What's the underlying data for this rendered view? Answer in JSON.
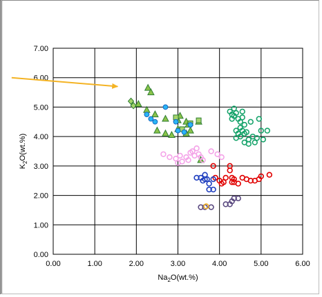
{
  "chart_data": {
    "type": "scatter",
    "title": "",
    "xlabel": {
      "main": "Na",
      "sub": "2",
      "rest": "O(wt.%)"
    },
    "ylabel": {
      "main": "K",
      "sub": "2",
      "rest": "O(wt.%)"
    },
    "xlim": [
      0,
      6
    ],
    "ylim": [
      0,
      7
    ],
    "x_ticks": [
      "0.00",
      "1.00",
      "2.00",
      "3.00",
      "4.00",
      "5.00",
      "6.00"
    ],
    "y_ticks": [
      "0.00",
      "1.00",
      "2.00",
      "3.00",
      "4.00",
      "5.00",
      "6.00",
      "7.00"
    ],
    "grid": true,
    "annotation_arrow": {
      "color": "#f4b323",
      "from": [
        -1.0,
        6.0
      ],
      "to": [
        1.55,
        5.7
      ]
    },
    "series": [
      {
        "marker": "diamond",
        "color": "#2e7d32",
        "fill": "#a5d36c",
        "points": [
          [
            1.87,
            5.2
          ],
          [
            1.93,
            5.05
          ]
        ]
      },
      {
        "marker": "triangle",
        "color": "#2e7d32",
        "fill": "#8bc34a",
        "points": [
          [
            2.28,
            5.65
          ],
          [
            2.35,
            5.5
          ],
          [
            2.05,
            5.1
          ],
          [
            2.25,
            4.9
          ],
          [
            2.45,
            4.75
          ],
          [
            2.7,
            4.6
          ],
          [
            3.0,
            4.55
          ],
          [
            3.05,
            4.7
          ],
          [
            3.2,
            4.5
          ],
          [
            3.25,
            4.4
          ],
          [
            3.3,
            4.2
          ],
          [
            3.5,
            4.5
          ],
          [
            2.5,
            4.2
          ],
          [
            2.7,
            4.1
          ],
          [
            2.85,
            4.05
          ],
          [
            3.0,
            4.25
          ],
          [
            3.2,
            4.1
          ],
          [
            3.55,
            3.2
          ]
        ]
      },
      {
        "marker": "square",
        "color": "#2e7d32",
        "fill": "#a5d36c",
        "points": [
          [
            2.95,
            4.65
          ],
          [
            3.1,
            4.25
          ],
          [
            3.3,
            4.45
          ],
          [
            3.5,
            4.55
          ]
        ]
      },
      {
        "marker": "circle",
        "color": "#1565c0",
        "fill": "#29b6f6",
        "points": [
          [
            2.25,
            4.75
          ],
          [
            2.35,
            4.6
          ],
          [
            2.45,
            4.5
          ],
          [
            2.7,
            5.0
          ],
          [
            2.95,
            4.5
          ],
          [
            3.0,
            4.2
          ],
          [
            3.15,
            4.15
          ],
          [
            3.3,
            4.4
          ]
        ]
      },
      {
        "marker": "circle",
        "color": "#f4a3e8",
        "fill": "none",
        "points": [
          [
            2.65,
            3.4
          ],
          [
            2.8,
            3.3
          ],
          [
            2.95,
            3.25
          ],
          [
            3.0,
            3.1
          ],
          [
            3.05,
            3.35
          ],
          [
            3.1,
            3.15
          ],
          [
            3.2,
            3.3
          ],
          [
            3.25,
            3.2
          ],
          [
            3.3,
            3.45
          ],
          [
            3.35,
            3.5
          ],
          [
            3.4,
            3.35
          ],
          [
            3.45,
            3.6
          ],
          [
            3.5,
            3.4
          ],
          [
            3.55,
            3.3
          ],
          [
            3.6,
            3.2
          ],
          [
            3.8,
            3.5
          ],
          [
            3.95,
            3.4
          ],
          [
            4.05,
            3.3
          ]
        ]
      },
      {
        "marker": "circle",
        "color": "#16a36a",
        "fill": "none",
        "points": [
          [
            4.25,
            4.85
          ],
          [
            4.3,
            4.75
          ],
          [
            4.3,
            4.6
          ],
          [
            4.35,
            4.95
          ],
          [
            4.35,
            4.7
          ],
          [
            4.4,
            4.8
          ],
          [
            4.45,
            4.6
          ],
          [
            4.5,
            4.5
          ],
          [
            4.55,
            4.85
          ],
          [
            4.55,
            4.65
          ],
          [
            4.6,
            4.4
          ],
          [
            4.4,
            4.2
          ],
          [
            4.45,
            4.1
          ],
          [
            4.5,
            4.3
          ],
          [
            4.5,
            4.0
          ],
          [
            4.55,
            4.2
          ],
          [
            4.6,
            4.1
          ],
          [
            4.6,
            3.8
          ],
          [
            4.65,
            4.15
          ],
          [
            4.7,
            3.9
          ],
          [
            4.7,
            3.75
          ],
          [
            4.75,
            4.5
          ],
          [
            4.8,
            4.0
          ],
          [
            4.85,
            3.8
          ],
          [
            4.9,
            3.95
          ],
          [
            4.95,
            4.6
          ],
          [
            5.0,
            4.2
          ],
          [
            5.05,
            3.9
          ],
          [
            5.15,
            4.2
          ],
          [
            4.4,
            3.95
          ]
        ]
      },
      {
        "marker": "circle",
        "color": "#e00000",
        "fill": "none",
        "points": [
          [
            3.85,
            3.0
          ],
          [
            3.9,
            2.6
          ],
          [
            4.0,
            2.5
          ],
          [
            4.05,
            2.4
          ],
          [
            4.1,
            2.45
          ],
          [
            4.15,
            2.6
          ],
          [
            4.25,
            3.0
          ],
          [
            4.3,
            2.6
          ],
          [
            4.3,
            2.45
          ],
          [
            4.35,
            2.55
          ],
          [
            4.45,
            2.4
          ],
          [
            4.55,
            2.6
          ],
          [
            4.65,
            2.55
          ],
          [
            4.75,
            2.5
          ],
          [
            4.85,
            2.5
          ],
          [
            4.95,
            2.55
          ],
          [
            5.0,
            2.65
          ],
          [
            5.2,
            2.7
          ],
          [
            4.25,
            2.85
          ],
          [
            4.35,
            2.45
          ]
        ]
      },
      {
        "marker": "circle",
        "color": "#1f3fbf",
        "fill": "none",
        "points": [
          [
            3.45,
            2.6
          ],
          [
            3.55,
            2.6
          ],
          [
            3.6,
            2.5
          ],
          [
            3.65,
            2.55
          ],
          [
            3.65,
            2.7
          ],
          [
            3.7,
            2.55
          ],
          [
            3.75,
            2.4
          ],
          [
            3.75,
            2.2
          ],
          [
            3.85,
            2.2
          ],
          [
            3.85,
            2.55
          ]
        ]
      },
      {
        "marker": "circle",
        "color": "#5b4a80",
        "fill": "none",
        "points": [
          [
            3.55,
            1.6
          ],
          [
            3.65,
            1.6
          ],
          [
            3.8,
            1.6
          ],
          [
            4.15,
            1.7
          ],
          [
            4.25,
            1.7
          ],
          [
            4.3,
            1.8
          ],
          [
            4.35,
            1.9
          ],
          [
            4.45,
            1.9
          ]
        ]
      },
      {
        "marker": "circle",
        "color": "#f4b323",
        "fill": "none",
        "points": [
          [
            3.68,
            1.63
          ]
        ]
      }
    ]
  }
}
